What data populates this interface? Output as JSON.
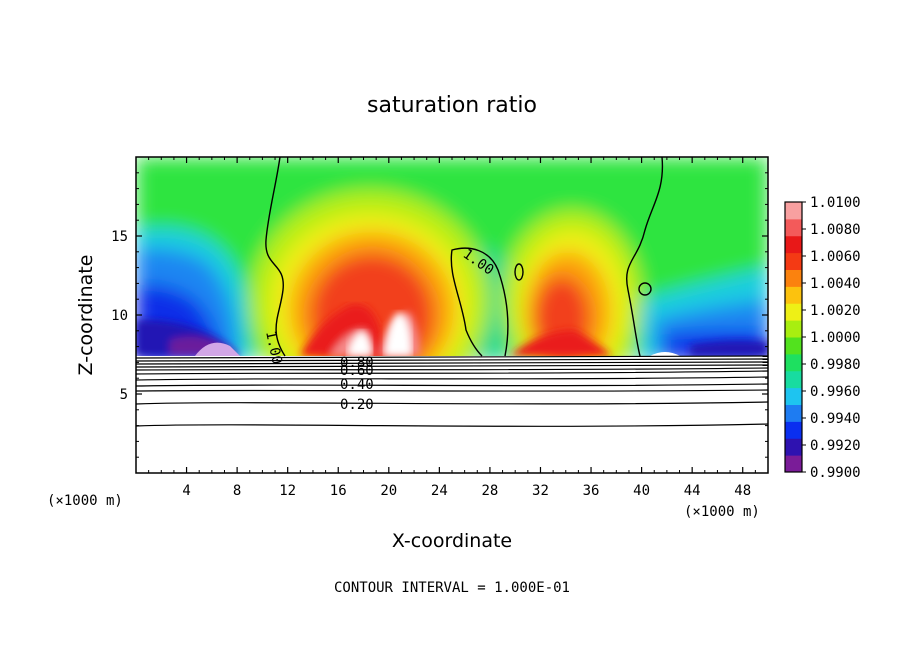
{
  "chart_data": {
    "type": "contour",
    "title": "saturation ratio",
    "xlabel": "X-coordinate",
    "ylabel": "Z-coordinate",
    "x_unit_left": "(×1000 m)",
    "x_unit_right": "(×1000 m)",
    "xlim": [
      0,
      50
    ],
    "ylim": [
      0,
      20
    ],
    "xticks": [
      4,
      8,
      12,
      16,
      20,
      24,
      28,
      32,
      36,
      40,
      44,
      48
    ],
    "yticks": [
      5,
      10,
      15
    ],
    "colorbar": {
      "min": 0.99,
      "max": 1.01,
      "ticks": [
        "1.0100",
        "1.0080",
        "1.0060",
        "1.0040",
        "1.0020",
        "1.0000",
        "0.9980",
        "0.9960",
        "0.9940",
        "0.9920",
        "0.9900"
      ],
      "colors": [
        "#7a1c98",
        "#2e12b0",
        "#0a2ff0",
        "#1e7cf2",
        "#1ec4f0",
        "#18dca0",
        "#1ee060",
        "#52e21e",
        "#a8ee10",
        "#eef016",
        "#fcc20e",
        "#fb820e",
        "#f43a14",
        "#e81818",
        "#f35a5a",
        "#f8a0a0"
      ]
    },
    "contour_lines_lower": [
      {
        "label": "0.80",
        "z": 7.0
      },
      {
        "label": "0.60",
        "z": 6.5
      },
      {
        "label": "0.40",
        "z": 5.7
      },
      {
        "label": "0.20",
        "z": 4.3
      }
    ],
    "contour_label_upper": "1.00",
    "cloud_base_z": 7.3,
    "regions_relative_to_1": [
      {
        "region": "x 0-9",
        "state": "subsaturated, 0.990-0.996"
      },
      {
        "region": "x 13-22",
        "state": "supersaturated, up to >1.010"
      },
      {
        "region": "x 22-29",
        "state": "near 0.997-0.999"
      },
      {
        "region": "x 29-38",
        "state": "supersaturated, up to 1.007"
      },
      {
        "region": "x 40-50",
        "state": "subsaturated, 0.991-0.996"
      }
    ],
    "footer": "CONTOUR INTERVAL = 1.000E-01"
  }
}
